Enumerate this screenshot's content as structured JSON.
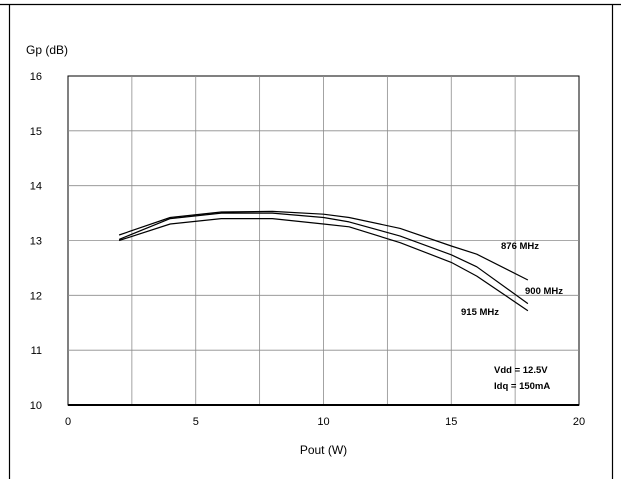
{
  "chart_data": {
    "type": "line",
    "title": "",
    "xlabel": "Pout (W)",
    "ylabel": "Gp (dB)",
    "xlim": [
      0,
      20
    ],
    "ylim": [
      10,
      16
    ],
    "xticks": [
      "0",
      "5",
      "10",
      "15",
      "20"
    ],
    "yticks": [
      "10",
      "11",
      "12",
      "13",
      "14",
      "15",
      "16"
    ],
    "grid": true,
    "series": [
      {
        "name": "876 MHz",
        "x": [
          2,
          4,
          6,
          8,
          10,
          11,
          13,
          15,
          16,
          18
        ],
        "y": [
          13.1,
          13.42,
          13.52,
          13.53,
          13.48,
          13.42,
          13.22,
          12.9,
          12.75,
          12.28
        ]
      },
      {
        "name": "900 MHz",
        "x": [
          2,
          4,
          6,
          8,
          10,
          11,
          13,
          15,
          16,
          18
        ],
        "y": [
          13.02,
          13.4,
          13.5,
          13.5,
          13.42,
          13.34,
          13.08,
          12.74,
          12.52,
          11.85
        ]
      },
      {
        "name": "915 MHz",
        "x": [
          2,
          4,
          6,
          8,
          10,
          11,
          13,
          15,
          16,
          18
        ],
        "y": [
          13.0,
          13.3,
          13.4,
          13.4,
          13.3,
          13.25,
          12.96,
          12.6,
          12.35,
          11.72
        ]
      }
    ],
    "annotations": [
      "Vdd = 12.5V",
      "Idq = 150mA"
    ]
  }
}
